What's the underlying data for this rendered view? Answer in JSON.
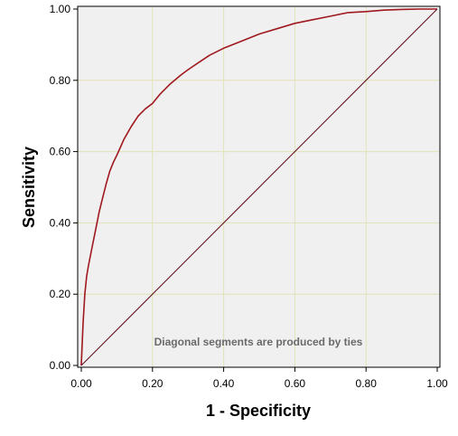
{
  "chart_data": {
    "type": "line",
    "xlabel": "1 - Specificity",
    "ylabel": "Sensitivity",
    "xlim": [
      0,
      1
    ],
    "ylim": [
      0,
      1
    ],
    "grid": true,
    "x_ticks": [
      "0.00",
      "0.20",
      "0.40",
      "0.60",
      "0.80",
      "1.00"
    ],
    "y_ticks": [
      "0.00",
      "0.20",
      "0.40",
      "0.60",
      "0.80",
      "1.00"
    ],
    "annotation": "Diagonal segments are produced by ties",
    "colors": {
      "plot_background": "#f0f0f0",
      "grid": "#e2e2b8",
      "roc_curve": "#a0191e",
      "reference_line": "#5a0a14"
    },
    "series": [
      {
        "role": "roc-curve",
        "x": [
          0,
          0.002,
          0.005,
          0.01,
          0.015,
          0.02,
          0.03,
          0.04,
          0.05,
          0.06,
          0.07,
          0.08,
          0.09,
          0.1,
          0.12,
          0.14,
          0.16,
          0.18,
          0.2,
          0.22,
          0.25,
          0.28,
          0.3,
          0.33,
          0.36,
          0.4,
          0.45,
          0.5,
          0.55,
          0.6,
          0.65,
          0.7,
          0.75,
          0.8,
          0.85,
          0.9,
          0.95,
          1.0
        ],
        "y": [
          0,
          0.05,
          0.12,
          0.2,
          0.25,
          0.28,
          0.33,
          0.38,
          0.43,
          0.47,
          0.51,
          0.545,
          0.57,
          0.59,
          0.635,
          0.67,
          0.7,
          0.72,
          0.735,
          0.76,
          0.79,
          0.815,
          0.83,
          0.85,
          0.87,
          0.89,
          0.91,
          0.93,
          0.945,
          0.96,
          0.97,
          0.98,
          0.99,
          0.993,
          0.997,
          0.999,
          1.0,
          1.0
        ]
      },
      {
        "role": "reference-line",
        "x": [
          0,
          1
        ],
        "y": [
          0,
          1
        ]
      }
    ]
  }
}
